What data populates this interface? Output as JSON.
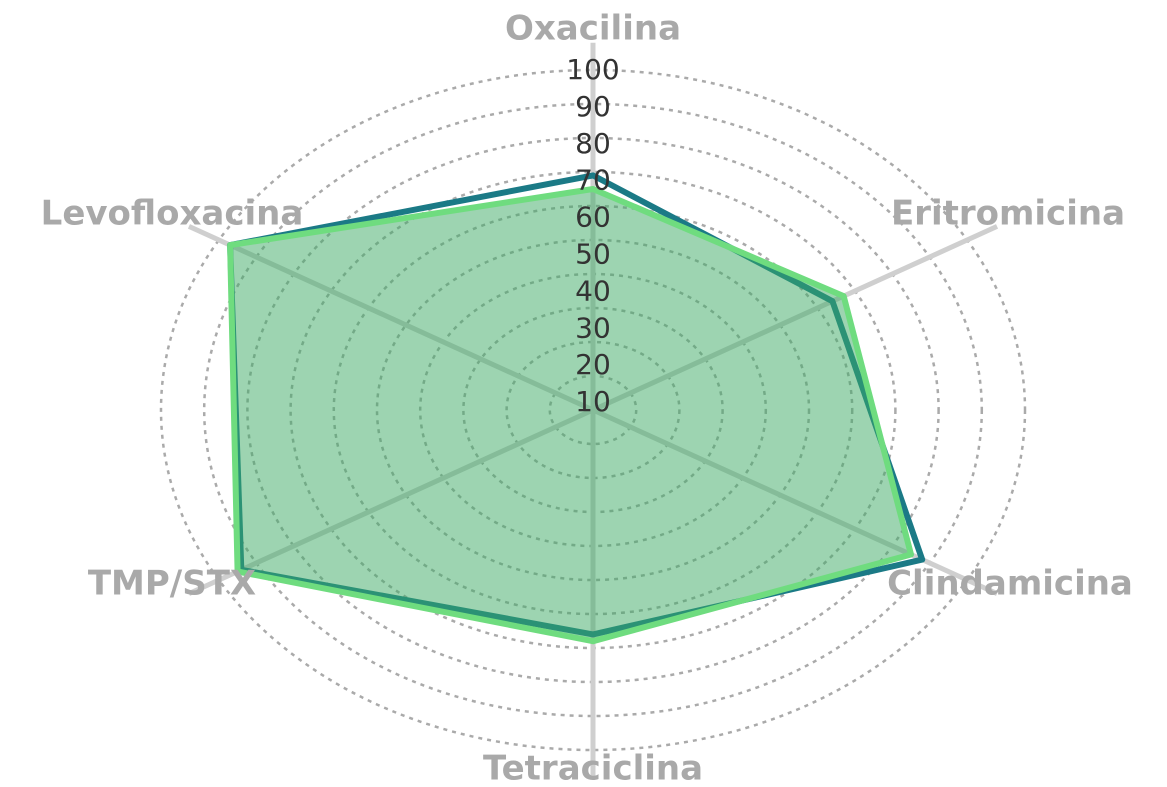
{
  "chart_data": {
    "type": "radar",
    "categories": [
      "Oxacilina",
      "Eritromicina",
      "Clindamicina",
      "Tetraciclina",
      "TMP/STX",
      "Levofloxacina"
    ],
    "series": [
      {
        "color": "#1b7a86",
        "values": [
          69,
          64,
          88,
          66,
          94,
          97
        ]
      },
      {
        "color": "#6fdc7f",
        "fill": "rgba(60,170,100,0.5)",
        "values": [
          65,
          67,
          85,
          68,
          95,
          97
        ]
      }
    ],
    "ylim": [
      0,
      100
    ],
    "yticks": [
      10,
      20,
      30,
      40,
      50,
      60,
      70,
      80,
      90,
      100
    ],
    "grid": true
  }
}
